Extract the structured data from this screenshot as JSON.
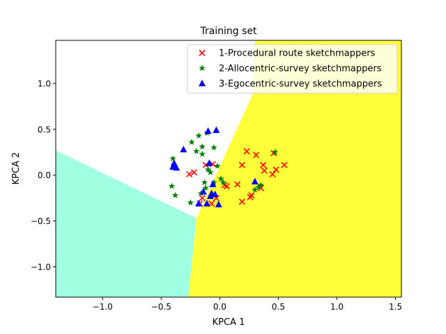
{
  "chart_data": {
    "type": "scatter",
    "title": "Training set",
    "xlabel": "KPCA 1",
    "ylabel": "KPCA 2",
    "xlim": [
      -1.4,
      1.55
    ],
    "ylim": [
      -1.33,
      1.47
    ],
    "grid": false,
    "legend_position": "top-right",
    "x_ticks": [
      {
        "value": -1.0,
        "label": "−1.0"
      },
      {
        "value": -0.5,
        "label": "−0.5"
      },
      {
        "value": 0.0,
        "label": "0.0"
      },
      {
        "value": 0.5,
        "label": "0.5"
      },
      {
        "value": 1.0,
        "label": "1.0"
      },
      {
        "value": 1.5,
        "label": "1.5"
      }
    ],
    "y_ticks": [
      {
        "value": -1.0,
        "label": "−1.0"
      },
      {
        "value": -0.5,
        "label": "−0.5"
      },
      {
        "value": 0.0,
        "label": "0.0"
      },
      {
        "value": 0.5,
        "label": "0.5"
      },
      {
        "value": 1.0,
        "label": "1.0"
      }
    ],
    "regions": [
      {
        "class": "1",
        "color": "#ffff3a",
        "polygon": [
          [
            -0.27,
            -1.33
          ],
          [
            1.55,
            -1.33
          ],
          [
            1.55,
            1.47
          ],
          [
            0.3,
            1.47
          ],
          [
            0.28,
            0.88
          ],
          [
            -0.2,
            -0.47
          ],
          [
            -0.2,
            -0.5
          ]
        ]
      },
      {
        "class": "3",
        "color": "#9fffe0",
        "polygon": [
          [
            -1.4,
            -1.33
          ],
          [
            -0.27,
            -1.33
          ],
          [
            -0.2,
            -0.47
          ],
          [
            -1.4,
            0.27
          ]
        ]
      }
    ],
    "series": [
      {
        "name": "1-Procedural route sketchmappers",
        "marker": "x",
        "color": "#ff0000",
        "points": [
          [
            -0.26,
            0.01
          ],
          [
            -0.22,
            0.03
          ],
          [
            -0.17,
            -0.31
          ],
          [
            -0.15,
            -0.25
          ],
          [
            -0.12,
            0.11
          ],
          [
            -0.07,
            -0.31
          ],
          [
            -0.06,
            0.12
          ],
          [
            -0.03,
            -0.25
          ],
          [
            0.04,
            -0.11
          ],
          [
            0.06,
            -0.12
          ],
          [
            0.15,
            -0.1
          ],
          [
            0.19,
            0.11
          ],
          [
            0.19,
            -0.29
          ],
          [
            0.23,
            0.26
          ],
          [
            0.26,
            -0.24
          ],
          [
            0.27,
            -0.22
          ],
          [
            0.31,
            0.22
          ],
          [
            0.35,
            -0.14
          ],
          [
            0.37,
            0.11
          ],
          [
            0.38,
            0.05
          ],
          [
            0.45,
            0.01
          ],
          [
            0.46,
            0.24
          ],
          [
            0.48,
            0.06
          ],
          [
            0.55,
            0.11
          ]
        ]
      },
      {
        "name": "2-Allocentric-survey sketchmappers",
        "marker": "star",
        "color": "#008000",
        "points": [
          [
            -0.4,
            0.18
          ],
          [
            -0.41,
            -0.12
          ],
          [
            -0.38,
            -0.22
          ],
          [
            -0.24,
            0.36
          ],
          [
            -0.25,
            -0.3
          ],
          [
            -0.2,
            0.26
          ],
          [
            -0.18,
            0.43
          ],
          [
            -0.16,
            -0.2
          ],
          [
            -0.15,
            0.31
          ],
          [
            -0.15,
            0.23
          ],
          [
            -0.13,
            -0.08
          ],
          [
            -0.12,
            -0.14
          ],
          [
            -0.11,
            0.46
          ],
          [
            -0.1,
            0.06
          ],
          [
            -0.08,
            0.03
          ],
          [
            -0.05,
            0.3
          ],
          [
            -0.05,
            -0.08
          ],
          [
            -0.02,
            0.1
          ],
          [
            0.01,
            -0.04
          ],
          [
            0.03,
            -0.08
          ],
          [
            0.3,
            -0.16
          ],
          [
            0.33,
            -0.13
          ],
          [
            0.35,
            -0.11
          ],
          [
            0.47,
            0.25
          ]
        ]
      },
      {
        "name": "3-Egocentric-survey sketchmappers",
        "marker": "triangle",
        "color": "#0000ff",
        "points": [
          [
            -0.4,
            0.09
          ],
          [
            -0.39,
            0.13
          ],
          [
            -0.38,
            0.1
          ],
          [
            -0.37,
            0.08
          ],
          [
            -0.31,
            0.28
          ],
          [
            -0.18,
            -0.31
          ],
          [
            -0.14,
            -0.18
          ],
          [
            -0.11,
            -0.31
          ],
          [
            -0.1,
            0.48
          ],
          [
            -0.09,
            0.13
          ],
          [
            -0.08,
            -0.23
          ],
          [
            -0.07,
            -0.2
          ],
          [
            -0.06,
            -0.1
          ],
          [
            -0.04,
            -0.21
          ],
          [
            -0.03,
            0.49
          ],
          [
            -0.01,
            -0.32
          ],
          [
            0.3,
            -0.07
          ]
        ]
      }
    ]
  }
}
